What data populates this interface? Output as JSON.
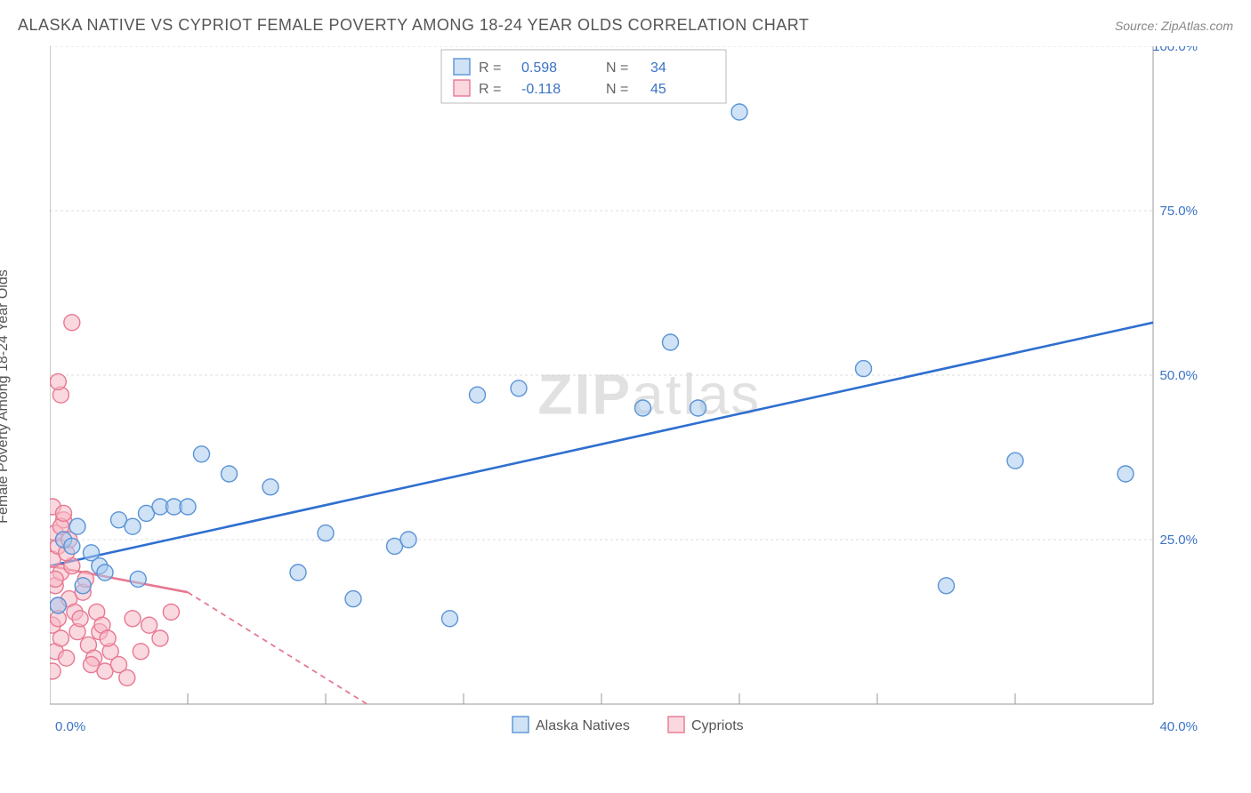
{
  "title": "ALASKA NATIVE VS CYPRIOT FEMALE POVERTY AMONG 18-24 YEAR OLDS CORRELATION CHART",
  "source": "Source: ZipAtlas.com",
  "y_axis_label": "Female Poverty Among 18-24 Year Olds",
  "chart": {
    "type": "scatter",
    "background_color": "#ffffff",
    "grid_color": "#dddddd",
    "axis_color": "#999999",
    "tick_label_color": "#3b72c4",
    "xlim": [
      0,
      40
    ],
    "ylim": [
      0,
      100
    ],
    "x_ticks": [
      0,
      5,
      10,
      15,
      20,
      25,
      30,
      35,
      40
    ],
    "x_tick_labels": {
      "0": "0.0%",
      "40": "40.0%"
    },
    "y_ticks": [
      25,
      50,
      75,
      100
    ],
    "y_tick_labels": {
      "25": "25.0%",
      "50": "50.0%",
      "75": "75.0%",
      "100": "100.0%"
    },
    "marker_radius": 9,
    "series": [
      {
        "name": "Alaska Natives",
        "color_fill": "#a8caef",
        "color_stroke": "#5a93d6",
        "trend_color": "#2f6fd0",
        "R": "0.598",
        "N": "34",
        "trend": {
          "x1": 0,
          "y1": 21,
          "x2": 40,
          "y2": 58
        },
        "points": [
          [
            0.3,
            15
          ],
          [
            0.5,
            25
          ],
          [
            0.8,
            24
          ],
          [
            1.0,
            27
          ],
          [
            1.2,
            18
          ],
          [
            1.5,
            23
          ],
          [
            1.8,
            21
          ],
          [
            2.0,
            20
          ],
          [
            2.5,
            28
          ],
          [
            3.0,
            27
          ],
          [
            3.2,
            19
          ],
          [
            3.5,
            29
          ],
          [
            4.0,
            30
          ],
          [
            4.5,
            30
          ],
          [
            5.0,
            30
          ],
          [
            5.5,
            38
          ],
          [
            6.5,
            35
          ],
          [
            8.0,
            33
          ],
          [
            9.0,
            20
          ],
          [
            10.0,
            26
          ],
          [
            11.0,
            16
          ],
          [
            12.5,
            24
          ],
          [
            13.0,
            25
          ],
          [
            14.5,
            13
          ],
          [
            15.5,
            47
          ],
          [
            17.0,
            48
          ],
          [
            21.5,
            45
          ],
          [
            22.5,
            55
          ],
          [
            23.5,
            45
          ],
          [
            25.0,
            90
          ],
          [
            29.5,
            51
          ],
          [
            32.5,
            18
          ],
          [
            35.0,
            37
          ],
          [
            39.0,
            35
          ]
        ]
      },
      {
        "name": "Cypriots",
        "color_fill": "#f5b8c4",
        "color_stroke": "#e77891",
        "trend_color": "#e77891",
        "R": "-0.118",
        "N": "45",
        "trend": {
          "x1": 0,
          "y1": 21,
          "x2_solid": 5,
          "y2_solid": 17,
          "x2": 11.5,
          "y2": 0
        },
        "points": [
          [
            0.1,
            5
          ],
          [
            0.2,
            8
          ],
          [
            0.1,
            12
          ],
          [
            0.3,
            15
          ],
          [
            0.2,
            18
          ],
          [
            0.4,
            20
          ],
          [
            0.1,
            22
          ],
          [
            0.3,
            24
          ],
          [
            0.2,
            26
          ],
          [
            0.5,
            28
          ],
          [
            0.1,
            30
          ],
          [
            0.4,
            10
          ],
          [
            0.6,
            7
          ],
          [
            0.3,
            13
          ],
          [
            0.7,
            16
          ],
          [
            0.2,
            19
          ],
          [
            0.8,
            21
          ],
          [
            0.4,
            27
          ],
          [
            0.6,
            23
          ],
          [
            0.9,
            14
          ],
          [
            1.0,
            11
          ],
          [
            0.5,
            29
          ],
          [
            1.2,
            17
          ],
          [
            0.7,
            25
          ],
          [
            1.4,
            9
          ],
          [
            1.1,
            13
          ],
          [
            1.6,
            7
          ],
          [
            1.3,
            19
          ],
          [
            1.8,
            11
          ],
          [
            1.5,
            6
          ],
          [
            2.0,
            5
          ],
          [
            1.7,
            14
          ],
          [
            2.2,
            8
          ],
          [
            1.9,
            12
          ],
          [
            2.5,
            6
          ],
          [
            2.1,
            10
          ],
          [
            2.8,
            4
          ],
          [
            3.0,
            13
          ],
          [
            3.3,
            8
          ],
          [
            3.6,
            12
          ],
          [
            4.0,
            10
          ],
          [
            4.4,
            14
          ],
          [
            0.4,
            47
          ],
          [
            0.3,
            49
          ],
          [
            0.8,
            58
          ]
        ]
      }
    ],
    "legend_bottom": [
      "Alaska Natives",
      "Cypriots"
    ],
    "legend_stats_labels": {
      "R": "R  =",
      "N": "N  ="
    }
  },
  "watermark": {
    "part1": "ZIP",
    "part2": "atlas"
  }
}
